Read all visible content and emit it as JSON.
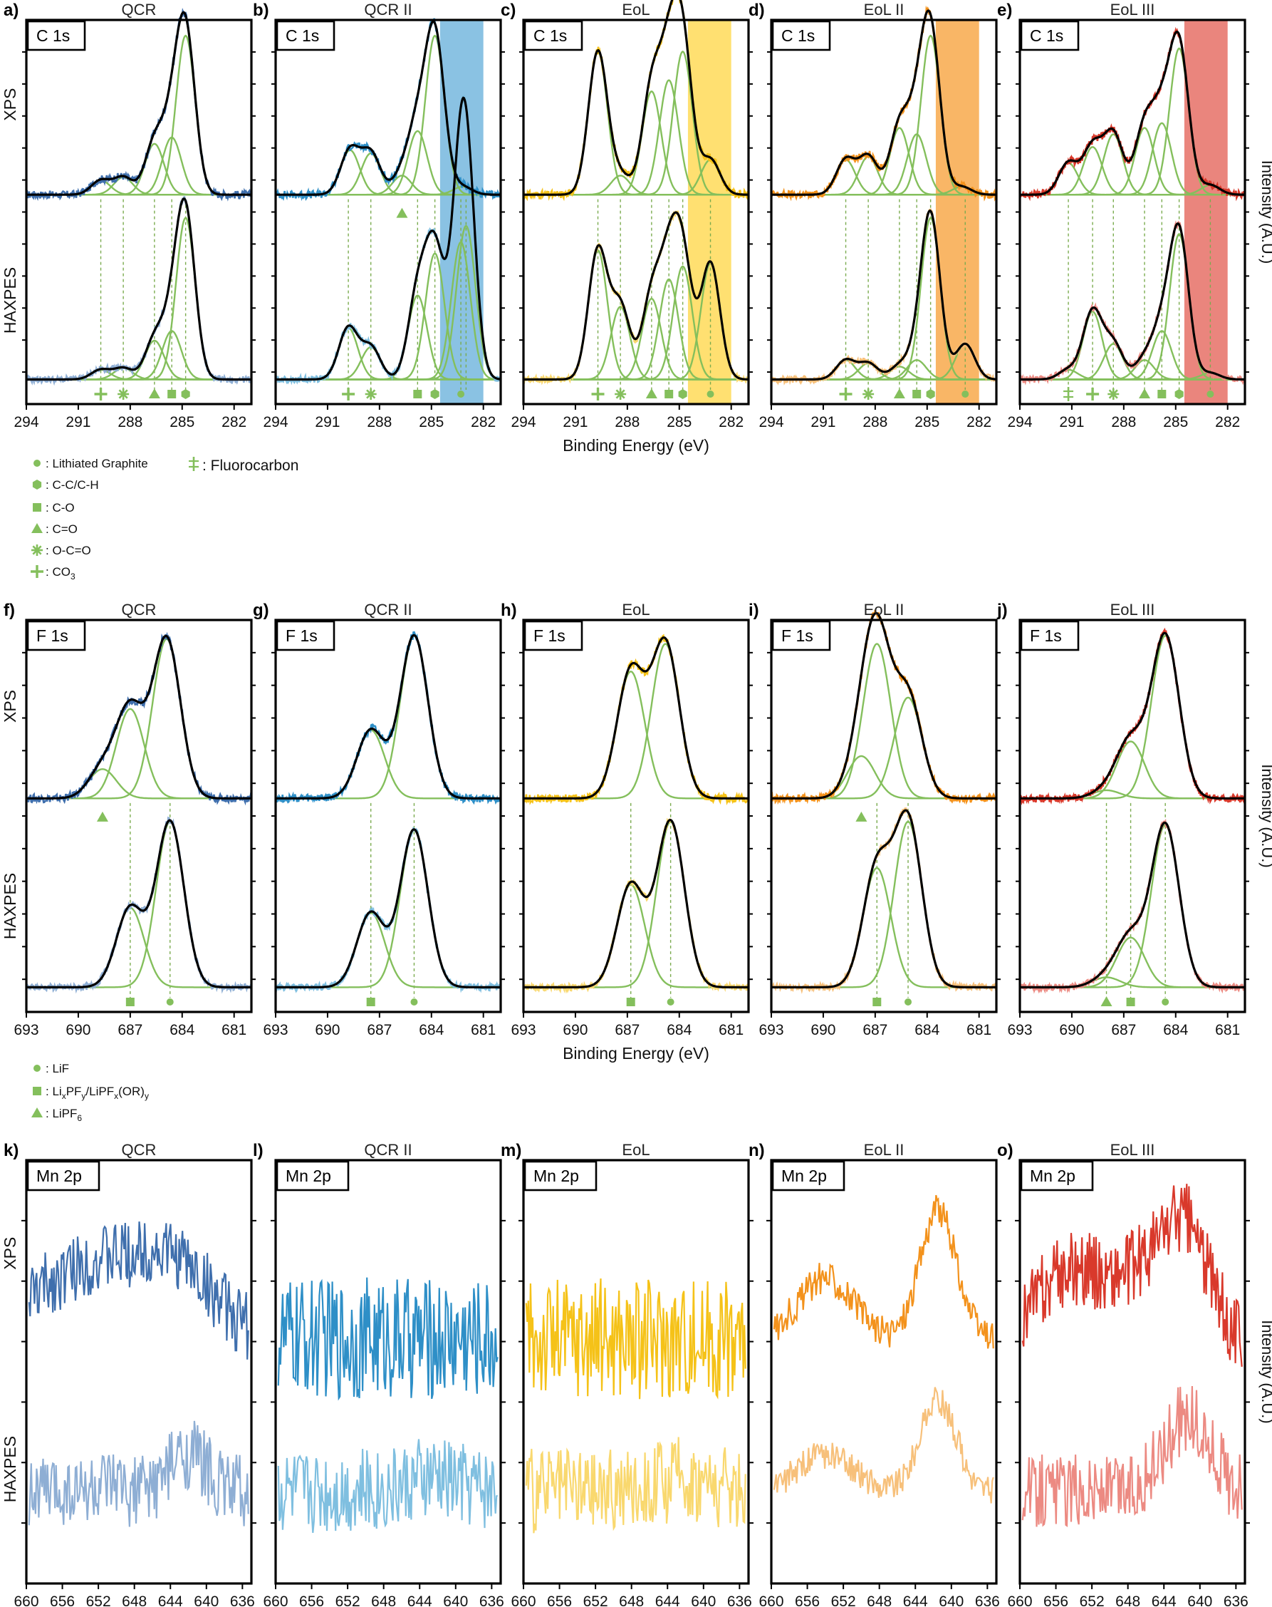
{
  "figure": {
    "x_axis_label": "Binding Energy (eV)",
    "y_axis_label": "Intensity (A.U.)",
    "row_labels": {
      "top": "XPS",
      "bottom": "HAXPES"
    },
    "sample_titles": [
      "QCR",
      "QCR II",
      "EoL",
      "EoL II",
      "EoL III"
    ],
    "sample_colors": {
      "xps": [
        "#3f6fad",
        "#2e8fc7",
        "#f5c218",
        "#f3921c",
        "#d9392b"
      ],
      "haxpes": [
        "#8eaed4",
        "#7fbfe0",
        "#f9d86e",
        "#f7c07a",
        "#ec8a82"
      ]
    },
    "overlay_colors": [
      "none",
      "#6db3dc",
      "#ffd84d",
      "#f7a440",
      "#e5675c"
    ],
    "fit_colors": {
      "component": "#84bf5c",
      "envelope": "#000000",
      "guide": "#7aab4e"
    }
  },
  "legend_c": [
    {
      "icon": "dot-small",
      "label": "Lithiated Graphite"
    },
    {
      "icon": "hexagon",
      "label": "C-C/C-H"
    },
    {
      "icon": "square",
      "label": "C-O"
    },
    {
      "icon": "triangle",
      "label": "C=O"
    },
    {
      "icon": "asterisk",
      "label": "O-C=O"
    },
    {
      "icon": "plus",
      "label": "CO",
      "sub": "3"
    },
    {
      "icon": "double-cross",
      "label": "Fluorocarbon"
    }
  ],
  "legend_f": [
    {
      "icon": "dot-small",
      "label": "LiF"
    },
    {
      "icon": "square",
      "label": "Li",
      "rich": [
        "x",
        "PF",
        "y",
        "/LiPF",
        "x",
        "(OR)",
        "y"
      ]
    },
    {
      "icon": "triangle",
      "label": "LiPF",
      "sub": "6"
    }
  ],
  "chart_data": [
    {
      "type": "line",
      "region": "C 1s",
      "xlim": [
        294,
        281
      ],
      "xticks": [
        294,
        291,
        288,
        285,
        282
      ],
      "overlay_range": [
        284.5,
        282.0
      ],
      "panels": [
        {
          "letter": "a)",
          "title": "QCR",
          "comp_xps": [
            289.7,
            288.4,
            286.6,
            285.6,
            284.8
          ],
          "comp_hax": [
            289.7,
            288.4,
            286.6,
            285.6,
            284.8
          ],
          "amp_xps": [
            0.09,
            0.11,
            0.32,
            0.36,
            1.0
          ],
          "amp_hax": [
            0.06,
            0.07,
            0.24,
            0.3,
            1.0
          ],
          "markers": [
            "plus",
            "asterisk",
            "triangle",
            "square",
            "hexagon"
          ],
          "extra_marker_xps": null
        },
        {
          "letter": "b)",
          "title": "QCR II",
          "comp_xps": [
            289.7,
            288.5,
            286.7,
            285.8,
            284.8,
            283.2
          ],
          "comp_hax": [
            289.8,
            288.5,
            285.8,
            284.8,
            283.3,
            283.0
          ],
          "amp_xps": [
            0.28,
            0.26,
            0.12,
            0.4,
            1.0,
            0.05
          ],
          "amp_hax": [
            0.32,
            0.2,
            0.52,
            0.78,
            0.85,
            0.95
          ],
          "markers": [
            "plus",
            "asterisk",
            "square",
            "hexagon",
            "dot-small"
          ],
          "extra_marker_xps": "triangle"
        },
        {
          "letter": "c)",
          "title": "EoL",
          "comp_xps": [
            289.7,
            288.4,
            286.6,
            285.6,
            284.8,
            283.2
          ],
          "comp_hax": [
            289.7,
            288.4,
            286.6,
            285.6,
            284.8,
            283.2
          ],
          "amp_xps": [
            0.9,
            0.12,
            0.65,
            0.72,
            0.9,
            0.22
          ],
          "amp_hax": [
            0.8,
            0.45,
            0.5,
            0.62,
            0.7,
            0.72
          ],
          "markers": [
            "plus",
            "asterisk",
            "triangle",
            "square",
            "hexagon",
            "dot-small"
          ],
          "extra_marker_xps": null
        },
        {
          "letter": "d)",
          "title": "EoL II",
          "comp_xps": [
            289.7,
            288.4,
            286.6,
            285.6,
            284.8,
            283.0
          ],
          "comp_hax": [
            289.7,
            288.4,
            286.6,
            285.6,
            284.8,
            282.8
          ],
          "amp_xps": [
            0.22,
            0.24,
            0.42,
            0.38,
            1.0,
            0.05
          ],
          "amp_hax": [
            0.12,
            0.1,
            0.08,
            0.12,
            1.0,
            0.22
          ],
          "markers": [
            "plus",
            "asterisk",
            "triangle",
            "square",
            "hexagon",
            "dot-small"
          ],
          "extra_marker_xps": null
        },
        {
          "letter": "e)",
          "title": "EoL III",
          "comp_xps": [
            291.2,
            289.8,
            288.6,
            286.8,
            285.8,
            284.8,
            283.0
          ],
          "comp_hax": [
            291.2,
            289.8,
            288.6,
            286.8,
            285.8,
            284.8,
            283.0
          ],
          "amp_xps": [
            0.2,
            0.3,
            0.38,
            0.42,
            0.45,
            0.92,
            0.06
          ],
          "amp_hax": [
            0.06,
            0.42,
            0.22,
            0.12,
            0.3,
            0.9,
            0.04
          ],
          "markers": [
            "double-cross",
            "plus",
            "asterisk",
            "triangle",
            "square",
            "hexagon",
            "dot-small"
          ],
          "extra_marker_xps": null
        }
      ]
    },
    {
      "type": "line",
      "region": "F 1s",
      "xlim": [
        693,
        680
      ],
      "xticks": [
        693,
        690,
        687,
        684,
        681
      ],
      "overlay_range": null,
      "panels": [
        {
          "letter": "f)",
          "title": "QCR",
          "comp_xps": [
            688.6,
            687.0,
            684.9
          ],
          "comp_hax": [
            687.0,
            684.7
          ],
          "amp_xps": [
            0.18,
            0.55,
            0.98
          ],
          "amp_hax": [
            0.48,
            1.0
          ],
          "markers": [
            "square",
            "dot-small"
          ],
          "extra_marker_xps": "triangle"
        },
        {
          "letter": "g)",
          "title": "QCR II",
          "comp_xps": [
            687.5,
            685.0
          ],
          "comp_hax": [
            687.5,
            685.0
          ],
          "amp_xps": [
            0.42,
            1.0
          ],
          "amp_hax": [
            0.45,
            0.95
          ],
          "markers": [
            "square",
            "dot-small"
          ],
          "extra_marker_xps": null
        },
        {
          "letter": "h)",
          "title": "EoL",
          "comp_xps": [
            686.8,
            684.8
          ],
          "comp_hax": [
            686.8,
            684.5
          ],
          "amp_xps": [
            0.78,
            0.95
          ],
          "amp_hax": [
            0.62,
            1.0
          ],
          "markers": [
            "square",
            "dot-small"
          ],
          "extra_marker_xps": null
        },
        {
          "letter": "i)",
          "title": "EoL II",
          "comp_xps": [
            687.8,
            686.9,
            685.1
          ],
          "comp_hax": [
            686.9,
            685.1
          ],
          "amp_xps": [
            0.26,
            0.95,
            0.62
          ],
          "amp_hax": [
            0.72,
            1.0
          ],
          "markers": [
            "square",
            "dot-small"
          ],
          "extra_marker_xps": "triangle"
        },
        {
          "letter": "j)",
          "title": "EoL III",
          "comp_xps": [
            688.0,
            686.6,
            684.6
          ],
          "comp_hax": [
            688.0,
            686.6,
            684.6
          ],
          "amp_xps": [
            0.05,
            0.35,
            1.0
          ],
          "amp_hax": [
            0.06,
            0.3,
            0.98
          ],
          "markers": [
            "triangle",
            "square",
            "dot-small"
          ],
          "extra_marker_xps": null
        }
      ]
    },
    {
      "type": "line",
      "region": "Mn 2p",
      "xlim": [
        660,
        635
      ],
      "xticks": [
        660,
        656,
        652,
        648,
        644,
        640,
        636
      ],
      "overlay_range": null,
      "panels": [
        {
          "letter": "k)",
          "title": "QCR",
          "peaks_xps": [
            {
              "x": 652,
              "amp": 0.55,
              "w": 7
            },
            {
              "x": 643,
              "amp": 0.35,
              "w": 4
            }
          ],
          "noise_xps": 0.25,
          "peaks_hax": [
            {
              "x": 642,
              "amp": 0.3,
              "w": 2
            }
          ],
          "noise_hax": 0.3
        },
        {
          "letter": "l)",
          "title": "QCR II",
          "peaks_xps": [],
          "noise_xps": 0.45,
          "peaks_hax": [
            {
              "x": 642,
              "amp": 0.1,
              "w": 3
            }
          ],
          "noise_hax": 0.35
        },
        {
          "letter": "m)",
          "title": "EoL",
          "peaks_xps": [],
          "noise_xps": 0.45,
          "peaks_hax": [
            {
              "x": 642,
              "amp": 0.1,
              "w": 3
            }
          ],
          "noise_hax": 0.35
        },
        {
          "letter": "n)",
          "title": "EoL II",
          "peaks_xps": [
            {
              "x": 654,
              "amp": 0.45,
              "w": 3
            },
            {
              "x": 641.5,
              "amp": 0.95,
              "w": 2
            }
          ],
          "noise_xps": 0.12,
          "peaks_hax": [
            {
              "x": 654,
              "amp": 0.3,
              "w": 3
            },
            {
              "x": 641.5,
              "amp": 0.75,
              "w": 2
            }
          ],
          "noise_hax": 0.12
        },
        {
          "letter": "o)",
          "title": "EoL III",
          "peaks_xps": [
            {
              "x": 654,
              "amp": 0.5,
              "w": 4
            },
            {
              "x": 646,
              "amp": 0.4,
              "w": 3
            },
            {
              "x": 641.5,
              "amp": 0.75,
              "w": 2.5
            }
          ],
          "noise_xps": 0.28,
          "peaks_hax": [
            {
              "x": 641.5,
              "amp": 0.6,
              "w": 2.5
            }
          ],
          "noise_hax": 0.3
        }
      ]
    }
  ]
}
